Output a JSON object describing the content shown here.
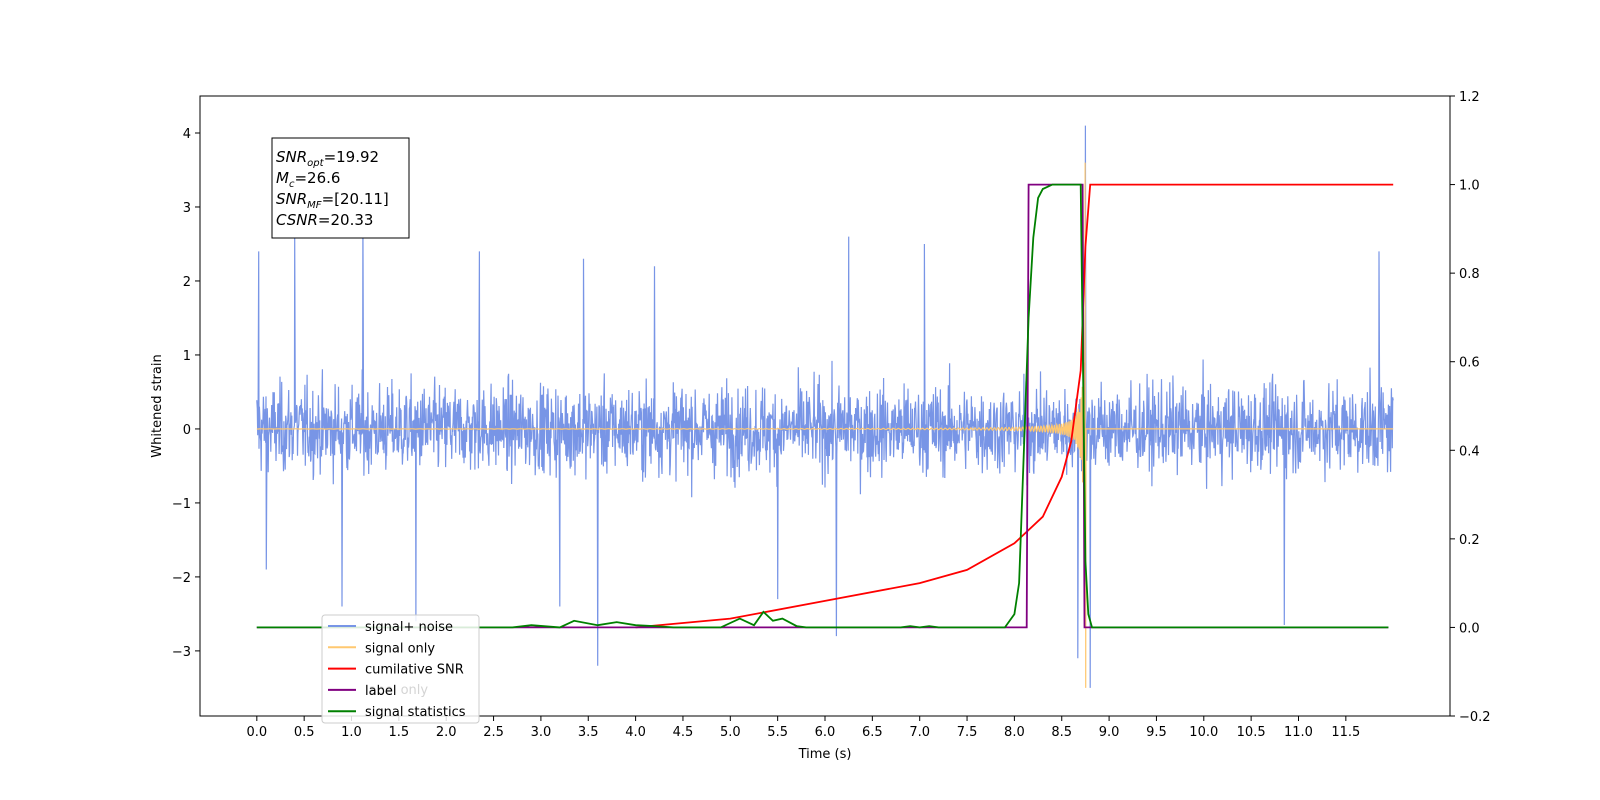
{
  "chart_data": {
    "type": "line",
    "xlabel": "Time (s)",
    "ylabel": "Whitened strain",
    "xlim": [
      -0.6,
      12.6
    ],
    "ylim": [
      -3.88,
      4.5
    ],
    "y2lim": [
      -0.2,
      1.2
    ],
    "x_ticks": [
      0.0,
      0.5,
      1.0,
      1.5,
      2.0,
      2.5,
      3.0,
      3.5,
      4.0,
      4.5,
      5.0,
      5.5,
      6.0,
      6.5,
      7.0,
      7.5,
      8.0,
      8.5,
      9.0,
      9.5,
      10.0,
      10.5,
      11.0,
      11.5
    ],
    "x_tick_labels": [
      "0.0",
      "0.5",
      "1.0",
      "1.5",
      "2.0",
      "2.5",
      "3.0",
      "3.5",
      "4.0",
      "4.5",
      "5.0",
      "5.5",
      "6.0",
      "6.5",
      "7.0",
      "7.5",
      "8.0",
      "8.5",
      "9.0",
      "9.5",
      "10.0",
      "10.5",
      "11.0",
      "11.5"
    ],
    "y_ticks": [
      -3,
      -2,
      -1,
      0,
      1,
      2,
      3,
      4
    ],
    "y_tick_labels": [
      "−3",
      "−2",
      "−1",
      "0",
      "1",
      "2",
      "3",
      "4"
    ],
    "y2_ticks": [
      -0.2,
      0.0,
      0.2,
      0.4,
      0.6,
      0.8,
      1.0,
      1.2
    ],
    "y2_tick_labels": [
      "−0.2",
      "0.0",
      "0.2",
      "0.4",
      "0.6",
      "0.8",
      "1.0",
      "1.2"
    ],
    "annotation": [
      {
        "main": "SNR",
        "sub": "opt",
        "rest": "=19.92"
      },
      {
        "main": "M",
        "sub": "c",
        "rest": "=26.6"
      },
      {
        "main": "SNR",
        "sub": "MF",
        "rest": "=[20.11]"
      },
      {
        "main": "CSNR",
        "sub": "",
        "rest": "=20.33"
      }
    ],
    "legend_position": "lower-left",
    "series": [
      {
        "name": "signal+ noise",
        "color": "#7895e6",
        "axis": "left",
        "x": [
          0.0,
          12.0
        ],
        "envelope": {
          "upper": 1.5,
          "lower": -1.5
        },
        "peaks": [
          [
            0.02,
            2.4
          ],
          [
            0.1,
            -1.9
          ],
          [
            0.4,
            2.6
          ],
          [
            0.9,
            -2.4
          ],
          [
            1.12,
            2.9
          ],
          [
            1.68,
            -2.6
          ],
          [
            2.35,
            2.4
          ],
          [
            3.2,
            -2.4
          ],
          [
            3.45,
            2.3
          ],
          [
            3.6,
            -3.2
          ],
          [
            4.2,
            2.2
          ],
          [
            5.5,
            -2.3
          ],
          [
            6.12,
            -2.8
          ],
          [
            6.25,
            2.6
          ],
          [
            7.05,
            2.5
          ],
          [
            8.75,
            4.1
          ],
          [
            8.67,
            -3.1
          ],
          [
            8.8,
            -3.5
          ],
          [
            10.85,
            -2.65
          ],
          [
            11.85,
            2.4
          ]
        ]
      },
      {
        "name": "signal only",
        "color": "#ffc870",
        "axis": "left",
        "x": [
          0.0,
          12.0
        ],
        "chirp_merger_time": 8.75,
        "peak": 3.6,
        "trough": -3.5
      },
      {
        "name": "cumilative SNR",
        "color": "#ff0000",
        "axis": "right",
        "x": [
          4.0,
          5.0,
          6.0,
          7.0,
          7.5,
          8.0,
          8.3,
          8.5,
          8.6,
          8.7,
          8.75,
          8.8,
          12.0
        ],
        "y": [
          0.0,
          0.02,
          0.06,
          0.1,
          0.13,
          0.19,
          0.25,
          0.34,
          0.42,
          0.58,
          0.86,
          1.0,
          1.0
        ]
      },
      {
        "name": "label",
        "color": "#800080",
        "axis": "right",
        "x": [
          0.0,
          8.13,
          8.15,
          8.72,
          8.74,
          11.95
        ],
        "y": [
          0.0,
          0.0,
          1.0,
          1.0,
          0.0,
          0.0
        ]
      },
      {
        "name": "signal statistics",
        "color": "#008000",
        "axis": "right",
        "x": [
          0.0,
          2.7,
          2.9,
          3.2,
          3.35,
          3.6,
          3.8,
          4.0,
          4.2,
          4.4,
          4.6,
          4.9,
          5.1,
          5.25,
          5.35,
          5.45,
          5.55,
          5.7,
          5.8,
          6.0,
          6.8,
          6.9,
          7.0,
          7.1,
          7.2,
          7.4,
          7.9,
          8.0,
          8.05,
          8.1,
          8.15,
          8.2,
          8.25,
          8.3,
          8.4,
          8.5,
          8.65,
          8.7,
          8.73,
          8.75,
          8.78,
          8.82,
          11.95
        ],
        "y": [
          0.0,
          0.0,
          0.005,
          0.0,
          0.015,
          0.005,
          0.012,
          0.005,
          0.003,
          0.0,
          0.0,
          0.0,
          0.02,
          0.005,
          0.035,
          0.015,
          0.02,
          0.003,
          0.0,
          0.0,
          0.0,
          0.003,
          0.0,
          0.003,
          0.0,
          0.0,
          0.0,
          0.03,
          0.1,
          0.4,
          0.7,
          0.88,
          0.97,
          0.99,
          1.0,
          1.0,
          1.0,
          1.0,
          0.5,
          0.15,
          0.03,
          0.0,
          0.0
        ]
      }
    ],
    "legend_overlap_text": "label only"
  }
}
